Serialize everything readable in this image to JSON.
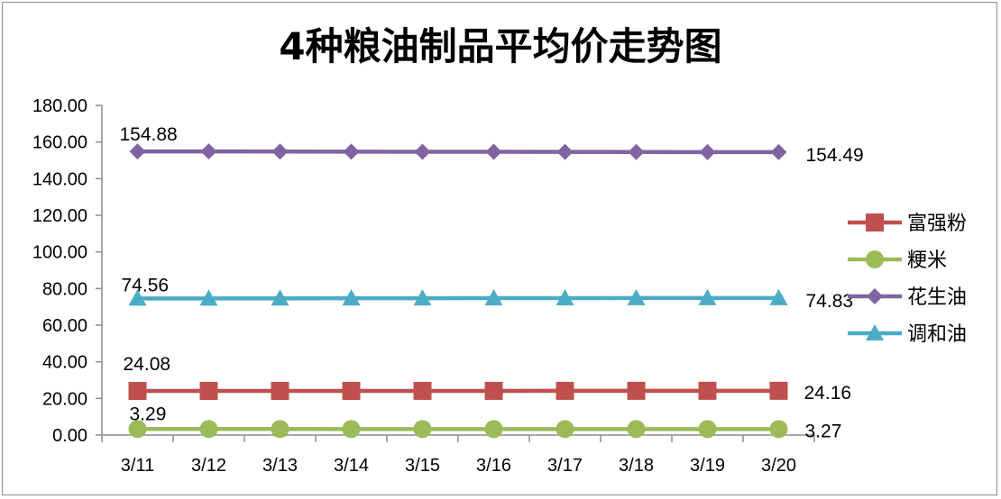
{
  "chart_data": {
    "type": "line",
    "title": "4种粮油制品平均价走势图",
    "categories": [
      "3/11",
      "3/12",
      "3/13",
      "3/14",
      "3/15",
      "3/16",
      "3/17",
      "3/18",
      "3/19",
      "3/20"
    ],
    "ylim": [
      0,
      180
    ],
    "yticks": [
      "0.00",
      "20.00",
      "40.00",
      "60.00",
      "80.00",
      "100.00",
      "120.00",
      "140.00",
      "160.00",
      "180.00"
    ],
    "grid": false,
    "legend_position": "right",
    "series": [
      {
        "name": "富强粉",
        "color": "#c0504d",
        "marker": "square",
        "values": [
          24.08,
          24.1,
          24.1,
          24.1,
          24.12,
          24.12,
          24.14,
          24.15,
          24.16,
          24.16
        ],
        "first_label": "24.08",
        "last_label": "24.16"
      },
      {
        "name": "粳米",
        "color": "#9bbb59",
        "marker": "circle",
        "values": [
          3.29,
          3.29,
          3.29,
          3.28,
          3.28,
          3.28,
          3.28,
          3.27,
          3.27,
          3.27
        ],
        "first_label": "3.29",
        "last_label": "3.27"
      },
      {
        "name": "花生油",
        "color": "#8064a2",
        "marker": "diamond",
        "values": [
          154.88,
          154.85,
          154.8,
          154.75,
          154.7,
          154.65,
          154.6,
          154.55,
          154.5,
          154.49
        ],
        "first_label": "154.88",
        "last_label": "154.49"
      },
      {
        "name": "调和油",
        "color": "#4bacc6",
        "marker": "triangle",
        "values": [
          74.56,
          74.6,
          74.65,
          74.7,
          74.72,
          74.75,
          74.78,
          74.8,
          74.82,
          74.83
        ],
        "first_label": "74.56",
        "last_label": "74.83"
      }
    ]
  }
}
